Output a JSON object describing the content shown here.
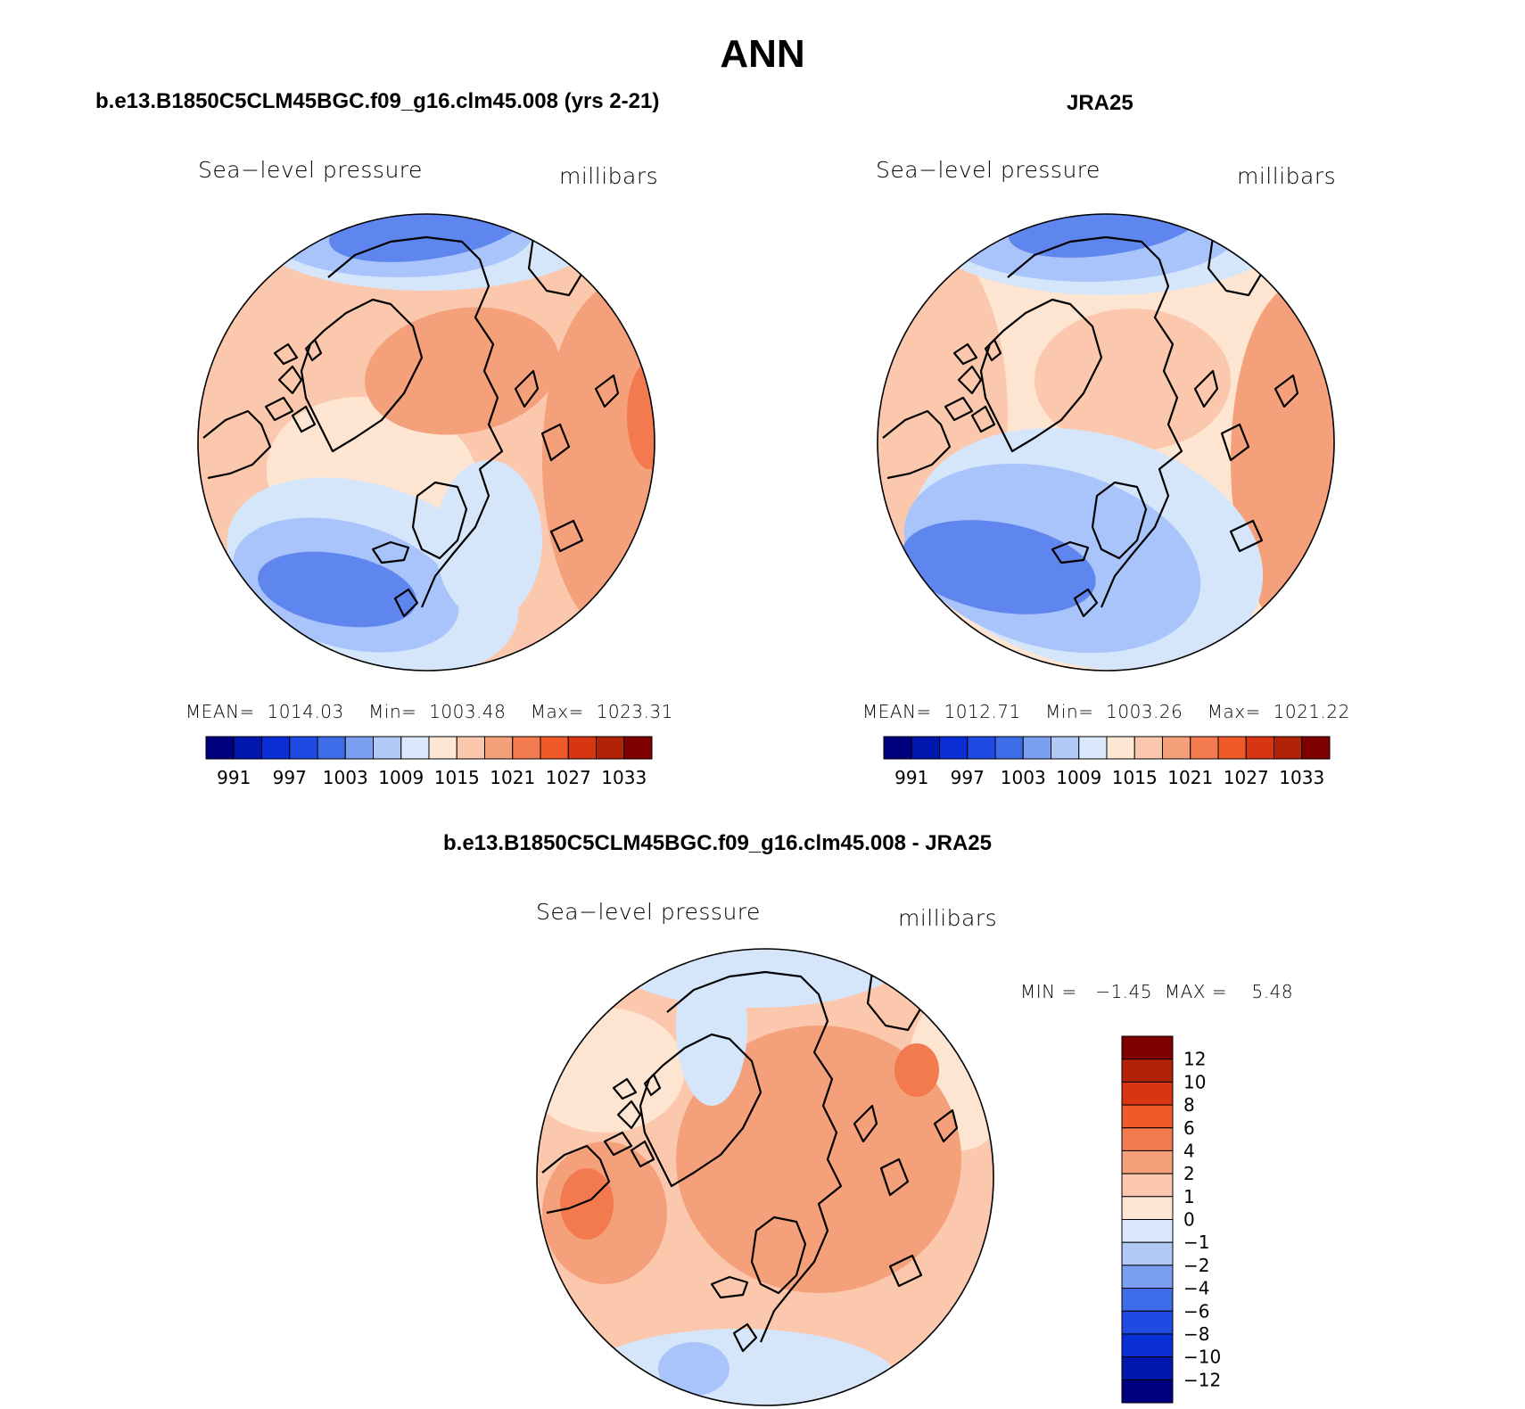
{
  "figure": {
    "title": "ANN",
    "colors": {
      "blue_dark": "#00007f",
      "blue": "#1f4be3",
      "blue_mid": "#5f86ee",
      "blue_light": "#a8c4fb",
      "blue_pale": "#d5e6fb",
      "peach_pale": "#fde5d2",
      "peach": "#fbc8ad",
      "salmon": "#f4a07a",
      "orange": "#f37a4e",
      "red_dark": "#7f0000"
    }
  },
  "panels": [
    {
      "id": "model",
      "case_title": "b.e13.B1850C5CLM45BGC.f09_g16.clm45.008 (yrs 2-21)",
      "variable": "Sea−level pressure",
      "units": "millibars",
      "stats": {
        "mean_label": "MEAN=",
        "mean": "1014.03",
        "min_label": "Min=",
        "min": "1003.48",
        "max_label": "Max=",
        "max": "1023.31"
      },
      "map": {
        "projection": "north polar stereographic",
        "field": "sea-level pressure"
      }
    },
    {
      "id": "obs",
      "case_title": "JRA25",
      "variable": "Sea−level pressure",
      "units": "millibars",
      "stats": {
        "mean_label": "MEAN=",
        "mean": "1012.71",
        "min_label": "Min=",
        "min": "1003.26",
        "max_label": "Max=",
        "max": "1021.22"
      },
      "map": {
        "projection": "north polar stereographic",
        "field": "sea-level pressure"
      }
    },
    {
      "id": "diff",
      "case_title": "b.e13.B1850C5CLM45BGC.f09_g16.clm45.008 - JRA25",
      "variable": "Sea−level pressure",
      "units": "millibars",
      "stats": {
        "min_label": "MIN =",
        "min": "−1.45",
        "max_label": "MAX =",
        "max": "5.48"
      },
      "map": {
        "projection": "north polar stereographic",
        "field": "sea-level pressure difference"
      }
    }
  ],
  "colorbars": {
    "absolute": {
      "orientation": "horizontal",
      "labels": [
        "991",
        "997",
        "1003",
        "1009",
        "1015",
        "1021",
        "1027",
        "1033"
      ],
      "colors": [
        "#00007f",
        "#0018b0",
        "#0a2fd6",
        "#1f4be3",
        "#3e6ce9",
        "#7b9ff0",
        "#b2c9f8",
        "#d9e8fb",
        "#fde6d4",
        "#fbc8ad",
        "#f4a07a",
        "#f37a4e",
        "#f05a2a",
        "#d83612",
        "#b22208",
        "#7f0000"
      ]
    },
    "difference": {
      "orientation": "vertical",
      "labels": [
        "12",
        "10",
        "8",
        "6",
        "4",
        "2",
        "1",
        "0",
        "−1",
        "−2",
        "−4",
        "−6",
        "−8",
        "−10",
        "−12"
      ],
      "colors": [
        "#7f0000",
        "#b22208",
        "#d83612",
        "#f05a2a",
        "#f37a4e",
        "#f4a07a",
        "#fbc8ad",
        "#fde6d4",
        "#d9e8fb",
        "#b2c9f8",
        "#7b9ff0",
        "#3e6ce9",
        "#1f4be3",
        "#0a2fd6",
        "#0018b0",
        "#00007f"
      ]
    }
  }
}
